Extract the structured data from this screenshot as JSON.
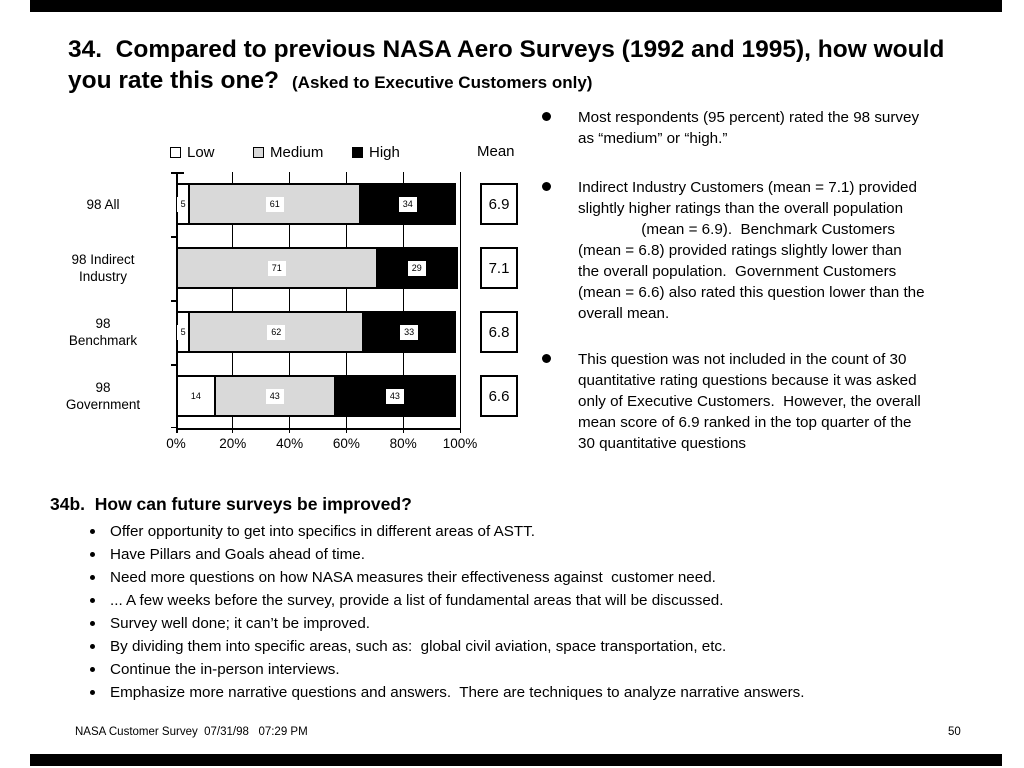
{
  "slide": {
    "title_line1": "34.  Compared to previous NASA Aero Surveys (1992 and 1995), how would",
    "title_line2": "you rate this one?",
    "title_subtitle": "(Asked to Executive Customers only)"
  },
  "chart_data": {
    "type": "bar",
    "orientation": "horizontal",
    "stacked": true,
    "categories": [
      "98 All",
      "98 Indirect Industry",
      "98 Benchmark",
      "98 Government"
    ],
    "category_lines": [
      [
        "98 All"
      ],
      [
        "98 Indirect",
        "Industry"
      ],
      [
        "98",
        "Benchmark"
      ],
      [
        "98",
        "Government"
      ]
    ],
    "series": [
      {
        "name": "Low",
        "color": "#ffffff",
        "values": [
          5,
          0,
          5,
          14
        ]
      },
      {
        "name": "Medium",
        "color": "#d9d9d9",
        "values": [
          61,
          71,
          62,
          43
        ]
      },
      {
        "name": "High",
        "color": "#000000",
        "values": [
          34,
          29,
          33,
          43
        ]
      }
    ],
    "means": {
      "label": "Mean",
      "values": [
        "6.9",
        "7.1",
        "6.8",
        "6.6"
      ]
    },
    "x_ticks": [
      "0%",
      "20%",
      "40%",
      "60%",
      "80%",
      "100%"
    ],
    "xlim": [
      0,
      100
    ],
    "legend_position": "top",
    "gridlines": "vertical"
  },
  "bullets_right": [
    "Most respondents (95 percent) rated the 98 survey\nas “medium” or “high.”",
    "Indirect Industry Customers (mean = 7.1) provided\nslightly higher ratings than the overall population\n               (mean = 6.9).  Benchmark Customers\n(mean = 6.8) provided ratings slightly lower than\nthe overall population.  Government Customers\n(mean = 6.6) also rated this question lower than the\noverall mean.",
    "This question was not included in the count of 30\nquantitative rating questions because it was asked\nonly of Executive Customers.  However, the overall\nmean score of 6.9 ranked in the top quarter of the\n30 quantitative questions"
  ],
  "section_b": {
    "heading": "34b.  How can future surveys be improved?",
    "items": [
      "Offer opportunity to get into specifics in different areas of ASTT.",
      "Have Pillars and Goals ahead of time.",
      "Need more questions on how NASA measures their effectiveness against  customer need.",
      "... A few weeks before the survey, provide a list of fundamental areas that will be discussed.",
      "Survey well done; it can’t be improved.",
      "By dividing them into specific areas, such as:  global civil aviation, space transportation, etc.",
      "Continue the in-person interviews.",
      "Emphasize more narrative questions and answers.  There are techniques to analyze narrative answers."
    ]
  },
  "footer": {
    "left": "NASA Customer Survey  07/31/98   07:29 PM",
    "page": "50"
  }
}
